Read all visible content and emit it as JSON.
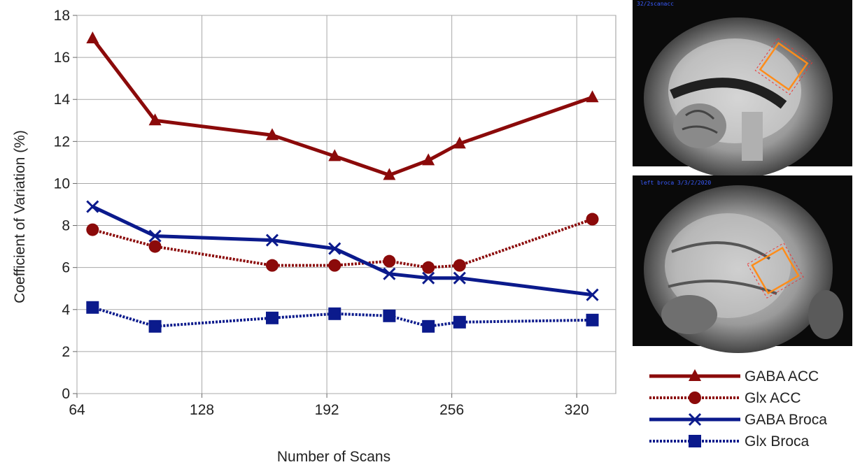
{
  "chart_data": {
    "type": "line",
    "xlabel": "Number of Scans",
    "ylabel": "Coefficient of Variation (%)",
    "xlim": [
      64,
      340
    ],
    "ylim": [
      0,
      18
    ],
    "xticks": [
      64,
      128,
      192,
      256,
      320
    ],
    "yticks": [
      0,
      2,
      4,
      6,
      8,
      10,
      12,
      14,
      16,
      18
    ],
    "grid": true,
    "legend_position": "bottom-right",
    "series": [
      {
        "name": "GABA ACC",
        "color": "#8b0a0a",
        "style": "solid",
        "marker": "triangle",
        "x": [
          72,
          104,
          164,
          196,
          224,
          244,
          260,
          328
        ],
        "y": [
          16.9,
          13.0,
          12.3,
          11.3,
          10.4,
          11.1,
          11.9,
          14.1
        ]
      },
      {
        "name": "Glx ACC",
        "color": "#8b0a0a",
        "style": "dotted",
        "marker": "circle",
        "x": [
          72,
          104,
          164,
          196,
          224,
          244,
          260,
          328
        ],
        "y": [
          7.8,
          7.0,
          6.1,
          6.1,
          6.3,
          6.0,
          6.1,
          8.3
        ]
      },
      {
        "name": "GABA Broca",
        "color": "#0b1a8c",
        "style": "solid",
        "marker": "x",
        "x": [
          72,
          104,
          164,
          196,
          224,
          244,
          260,
          328
        ],
        "y": [
          8.9,
          7.5,
          7.3,
          6.9,
          5.7,
          5.5,
          5.5,
          4.7
        ]
      },
      {
        "name": "Glx Broca",
        "color": "#0b1a8c",
        "style": "dotted",
        "marker": "square",
        "x": [
          72,
          104,
          164,
          196,
          224,
          244,
          260,
          328
        ],
        "y": [
          4.1,
          3.2,
          3.6,
          3.8,
          3.7,
          3.2,
          3.4,
          3.5
        ]
      }
    ]
  },
  "images": {
    "top_caption": "32/2scanacc",
    "bottom_caption": "left broca 3/3/2/2020"
  }
}
